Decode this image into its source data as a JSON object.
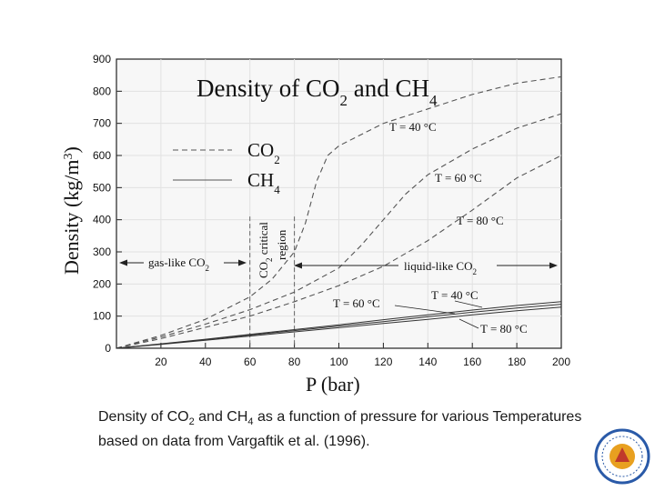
{
  "chart_data": {
    "type": "line",
    "title": {
      "main": "Density of CO",
      "sub1": "2",
      "mid": " and CH",
      "sub2": "4"
    },
    "xlabel": "P (bar)",
    "ylabel": {
      "main": "Density (kg/m",
      "sup": "3",
      "close": ")"
    },
    "xlim": [
      0,
      200
    ],
    "ylim": [
      0,
      900
    ],
    "xticks": [
      20,
      40,
      60,
      80,
      100,
      120,
      140,
      160,
      180,
      200
    ],
    "yticks": [
      0,
      100,
      200,
      300,
      400,
      500,
      600,
      700,
      800,
      900
    ],
    "grid": true,
    "legend": {
      "placement": "upper-left",
      "entries": [
        {
          "label_main": "CO",
          "label_sub": "2",
          "style": "dashed"
        },
        {
          "label_main": "CH",
          "label_sub": "4",
          "style": "solid"
        }
      ]
    },
    "series": [
      {
        "label": "T = 40 °C",
        "gas": "CO2",
        "style": "dashed",
        "x": [
          0,
          20,
          40,
          60,
          70,
          80,
          85,
          90,
          95,
          100,
          120,
          140,
          160,
          180,
          200
        ],
        "y": [
          0,
          40,
          90,
          160,
          215,
          300,
          390,
          520,
          600,
          630,
          700,
          745,
          790,
          825,
          845
        ]
      },
      {
        "label": "T = 60 °C",
        "gas": "CO2",
        "style": "dashed",
        "x": [
          0,
          20,
          40,
          60,
          80,
          100,
          110,
          120,
          130,
          140,
          160,
          180,
          200
        ],
        "y": [
          0,
          35,
          75,
          120,
          175,
          250,
          320,
          400,
          480,
          540,
          620,
          685,
          730
        ]
      },
      {
        "label": "T = 80 °C",
        "gas": "CO2",
        "style": "dashed",
        "x": [
          0,
          20,
          40,
          60,
          80,
          100,
          120,
          140,
          160,
          180,
          200
        ],
        "y": [
          0,
          30,
          65,
          100,
          145,
          195,
          255,
          335,
          430,
          530,
          600
        ]
      },
      {
        "label": "T = 40 °C",
        "gas": "CH4",
        "style": "solid",
        "x": [
          0,
          20,
          40,
          60,
          80,
          100,
          120,
          140,
          160,
          180,
          200
        ],
        "y": [
          0,
          14,
          28,
          43,
          58,
          73,
          89,
          104,
          119,
          133,
          145
        ]
      },
      {
        "label": "T = 60 °C",
        "gas": "CH4",
        "style": "solid",
        "x": [
          0,
          20,
          40,
          60,
          80,
          100,
          120,
          140,
          160,
          180,
          200
        ],
        "y": [
          0,
          13,
          27,
          41,
          55,
          69,
          83,
          98,
          112,
          125,
          137
        ]
      },
      {
        "label": "T = 80 °C",
        "gas": "CH4",
        "style": "solid",
        "x": [
          0,
          20,
          40,
          60,
          80,
          100,
          120,
          140,
          160,
          180,
          200
        ],
        "y": [
          0,
          12,
          25,
          38,
          51,
          64,
          77,
          90,
          104,
          117,
          128
        ]
      }
    ],
    "critical_lines": [
      {
        "x": 60
      },
      {
        "x": 80
      }
    ],
    "annotations": {
      "co2_t40": "T = 40 °C",
      "co2_t60": "T = 60 °C",
      "co2_t80": "T = 80 °C",
      "ch4_t60": "T = 60 °C",
      "ch4_t40": "T = 40 °C",
      "ch4_t80": "T = 80 °C",
      "critical_main": "CO",
      "critical_sub": "2",
      "critical_rest": " critical",
      "critical_line2": "region",
      "gas_like_main": "gas-like CO",
      "gas_like_sub": "2",
      "liquid_like_main": "liquid-like CO",
      "liquid_like_sub": "2"
    }
  },
  "caption": {
    "part1": "Density of CO",
    "sub1": "2",
    "part2": " and CH",
    "sub2": "4",
    "part3": " as a function of pressure for various Temperatures based on data from Vargaftik et al. (1996)."
  }
}
